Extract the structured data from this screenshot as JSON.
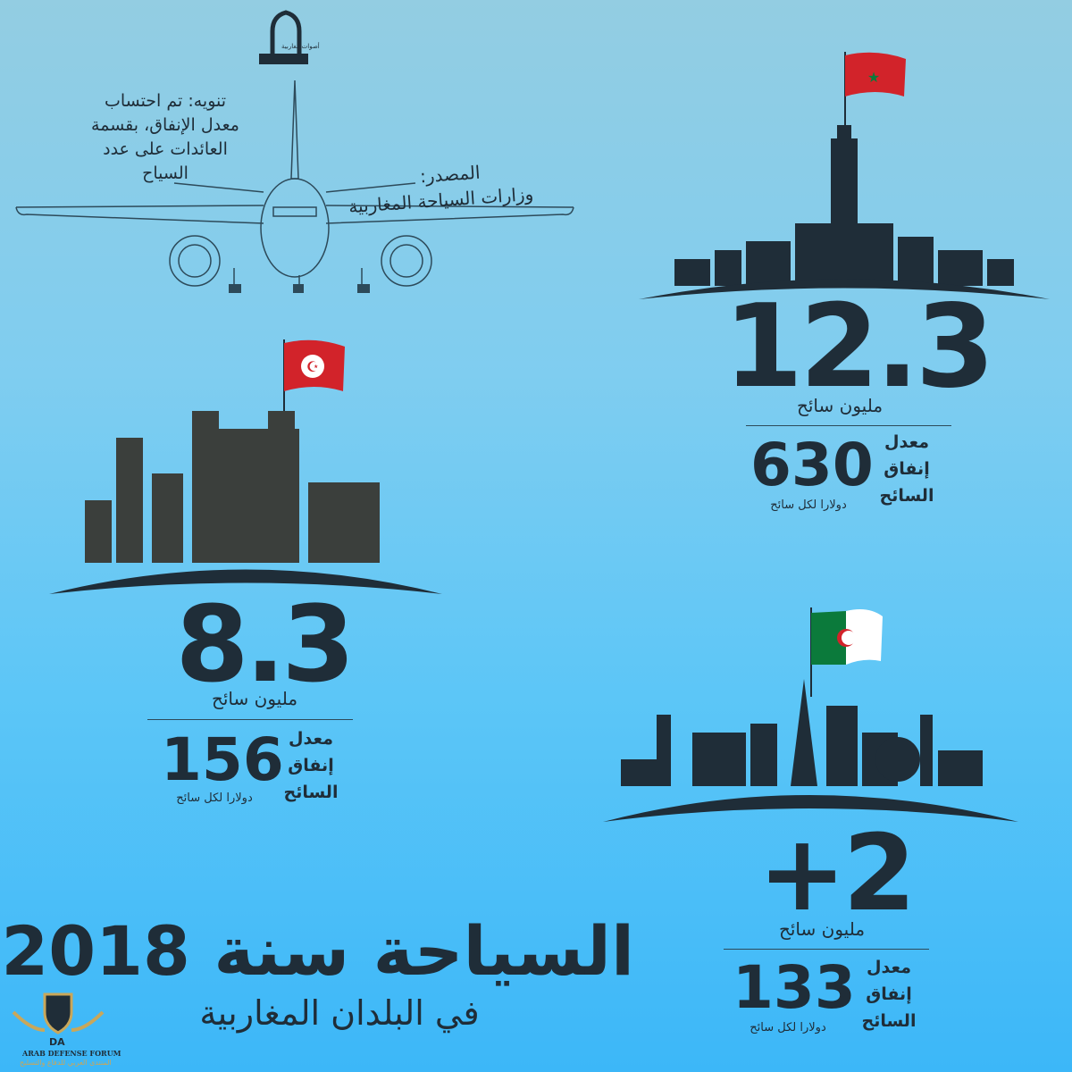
{
  "logo": {
    "text": "أصوات مغاربية"
  },
  "note": {
    "text": "تنويه: تم احتساب\nمعدل الإنفاق، بقسمة\nالعائدات على عدد\nالسياح"
  },
  "source": {
    "label": "المصدر:",
    "text": "وزارات السياحة المغاربية"
  },
  "countries": [
    {
      "country_flag": "morocco",
      "tourists": "12.3",
      "tourists_unit": "مليون سائح",
      "spend_label": "معدل\nإنفاق\nالسائح",
      "spend_value": "630",
      "spend_unit": "دولارا لكل سائح"
    },
    {
      "country_flag": "tunisia",
      "tourists": "8.3",
      "tourists_unit": "مليون سائح",
      "spend_label": "معدل\nإنفاق\nالسائح",
      "spend_value": "156",
      "spend_unit": "دولارا لكل سائح"
    },
    {
      "country_flag": "algeria",
      "tourists": "+2",
      "tourists_unit": "مليون سائح",
      "spend_label": "معدل\nإنفاق\nالسائح",
      "spend_value": "133",
      "spend_unit": "دولارا لكل سائح"
    }
  ],
  "title": {
    "main": "السياحة سنة 2018",
    "sub": "في البلدان المغاربية"
  },
  "watermark": {
    "initials": "DA",
    "name": "ARAB DEFENSE FORUM",
    "name_ar": "المنتدى العربي للدفاع والتسليح"
  },
  "colors": {
    "text": "#1f2d38",
    "flag_red": "#d2232a",
    "flag_green": "#0b7a3b"
  }
}
